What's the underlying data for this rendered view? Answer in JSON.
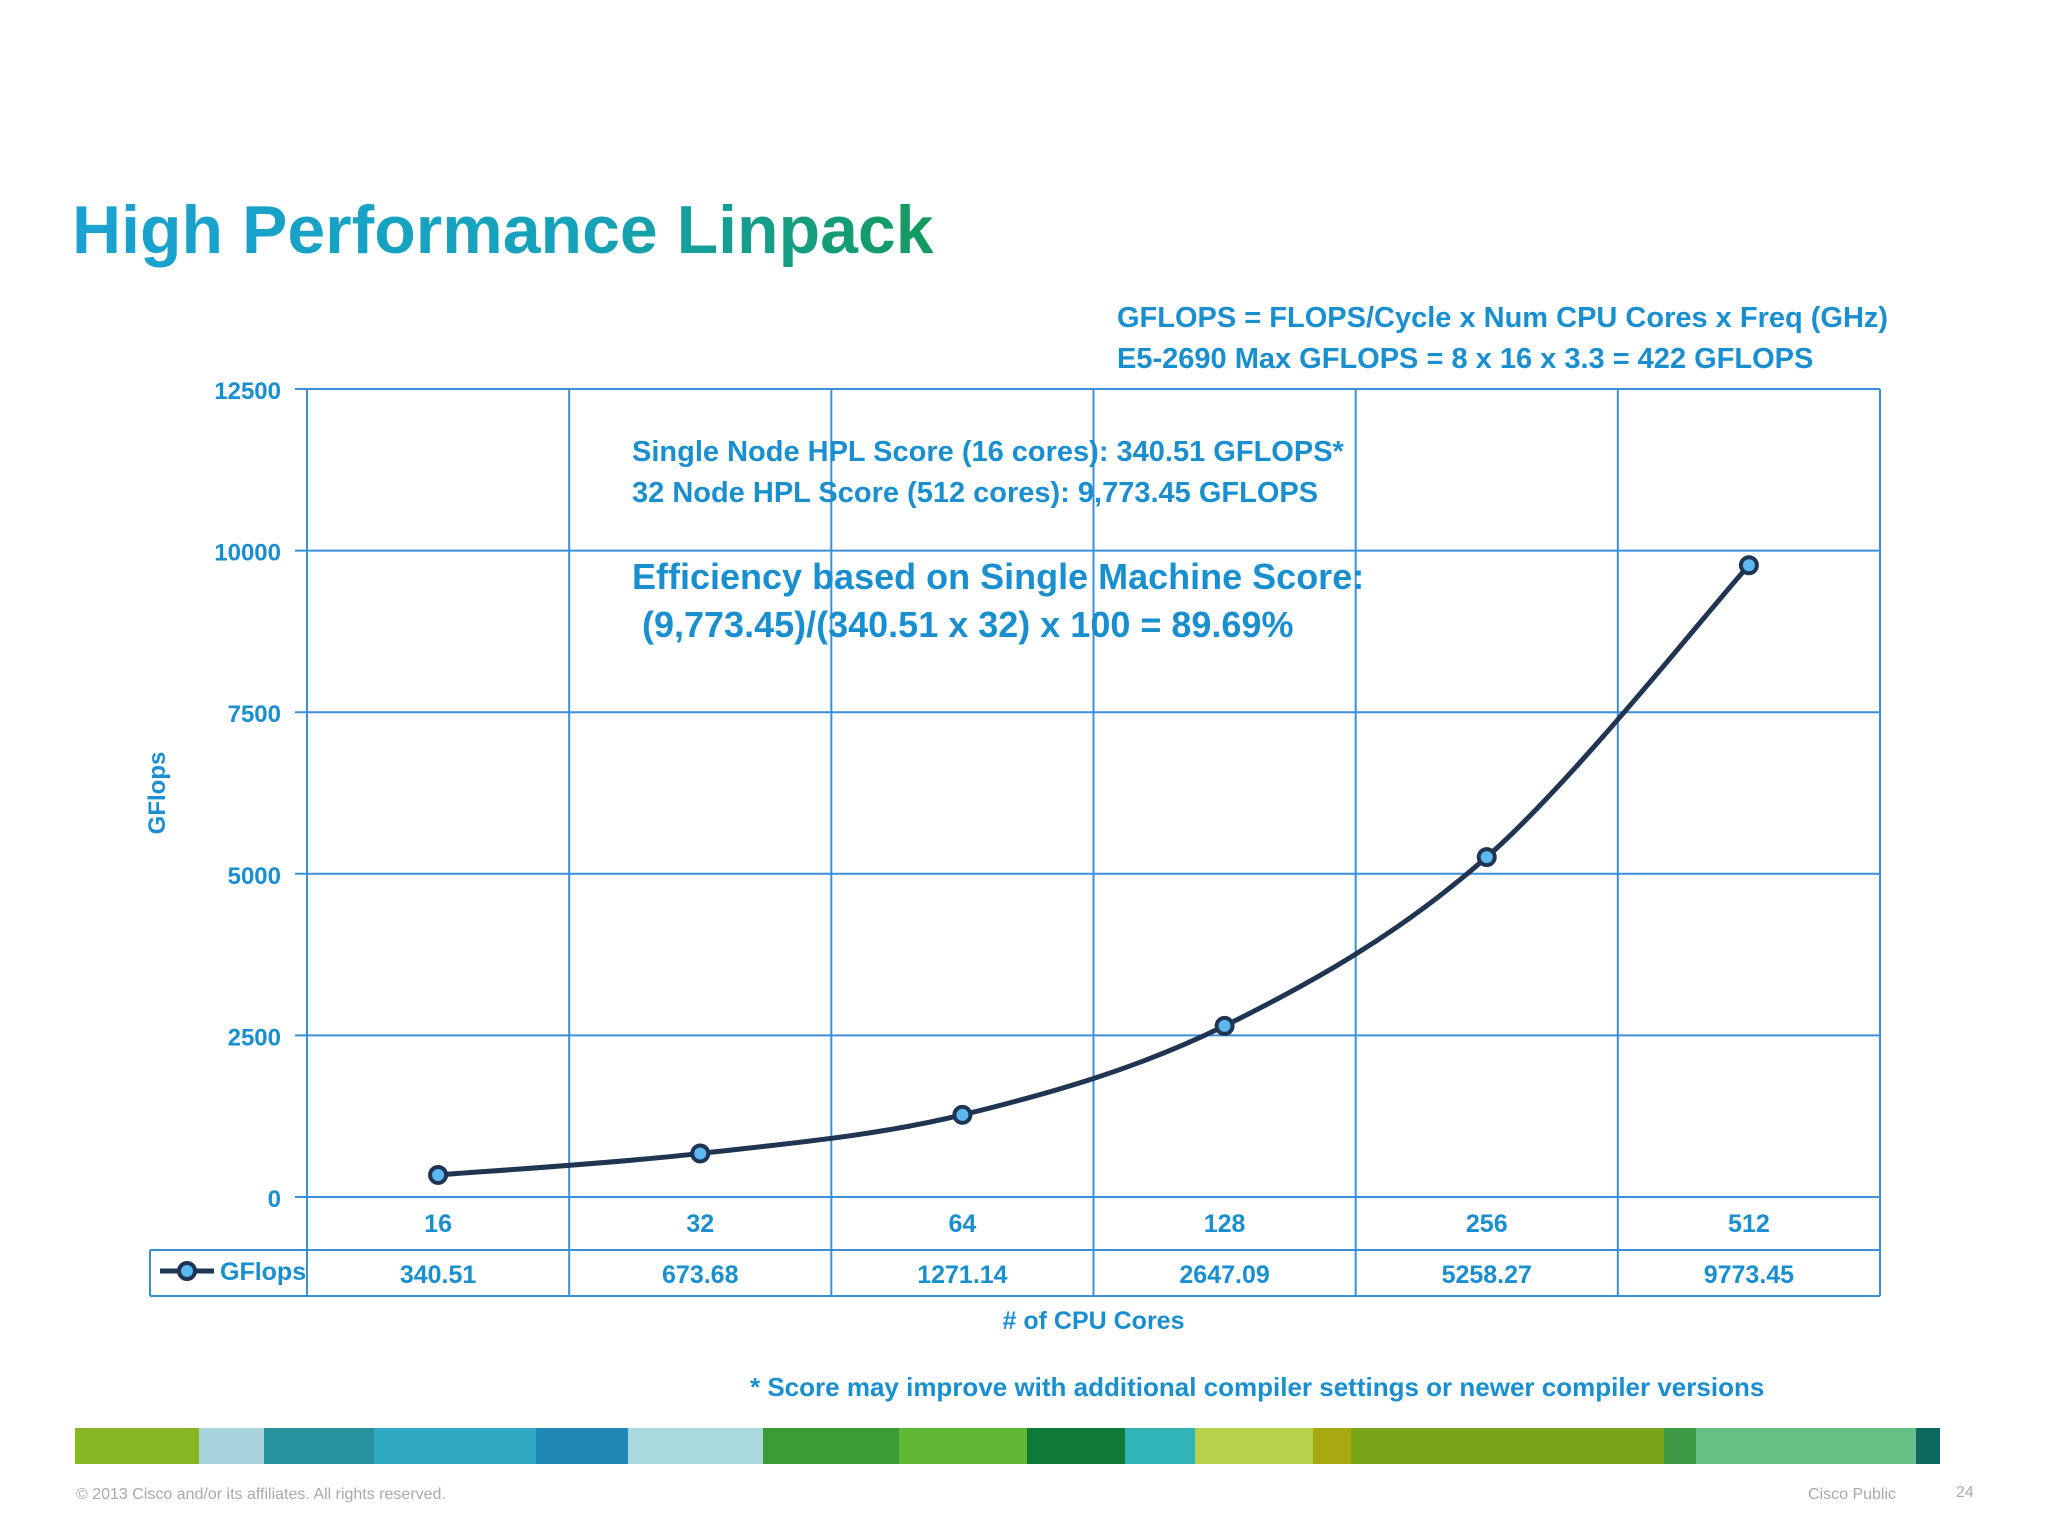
{
  "slide": {
    "title": "High Performance Linpack",
    "formula_line1": "GFLOPS = FLOPS/Cycle x Num CPU Cores x Freq (GHz)",
    "formula_line2": "E5-2690 Max GFLOPS = 8 x 16 x 3.3 = 422 GFLOPS",
    "score_line1": "Single Node HPL Score (16 cores): 340.51 GFLOPS*",
    "score_line2": "32 Node HPL Score (512 cores): 9,773.45 GFLOPS",
    "efficiency_line1": "Efficiency based on Single Machine Score:",
    "efficiency_line2": " (9,773.45)/(340.51 x 32) x 100 = 89.69%",
    "footnote": "* Score may improve with additional compiler settings or newer compiler versions",
    "copyright": "© 2013 Cisco and/or its affiliates. All rights reserved.",
    "classification": "Cisco Public",
    "page_number": "24"
  },
  "colors": {
    "accent": "#1a8fd0",
    "grid": "#3b8fd9",
    "line": "#1f3552",
    "marker_fill": "#5bb8f0",
    "stripe": [
      "#88b724",
      "#a8d4de",
      "#26929f",
      "#2fa9c2",
      "#1f88b7",
      "#a9d8de",
      "#3a9a36",
      "#62b834",
      "#0f7a36",
      "#2fb4b8",
      "#b7d24a",
      "#a8a810",
      "#7aa41a",
      "#3e9a44",
      "#66c086",
      "#0e6a60"
    ]
  },
  "chart_data": {
    "type": "line",
    "title": "",
    "xlabel": "# of CPU Cores",
    "ylabel": "GFlops",
    "categories": [
      "16",
      "32",
      "64",
      "128",
      "256",
      "512"
    ],
    "series": [
      {
        "name": "GFlops",
        "values": [
          340.51,
          673.68,
          1271.14,
          2647.09,
          5258.27,
          9773.45
        ]
      }
    ],
    "value_labels": [
      "340.51",
      "673.68",
      "1271.14",
      "2647.09",
      "5258.27",
      "9773.45"
    ],
    "yticks": [
      0,
      2500,
      5000,
      7500,
      10000,
      12500
    ],
    "ytick_labels": [
      "0",
      "2500",
      "5000",
      "7500",
      "10000",
      "12500"
    ],
    "ylim": [
      0,
      12500
    ],
    "grid": true,
    "legend": "data-table-left",
    "smooth": true
  }
}
